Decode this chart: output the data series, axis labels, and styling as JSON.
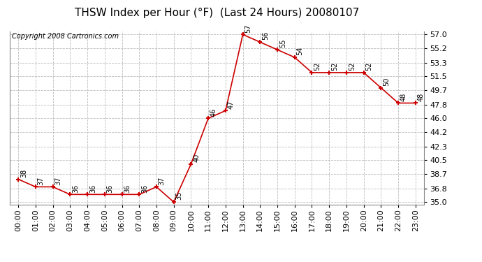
{
  "title": "THSW Index per Hour (°F)  (Last 24 Hours) 20080107",
  "copyright": "Copyright 2008 Cartronics.com",
  "hours": [
    0,
    1,
    2,
    3,
    4,
    5,
    6,
    7,
    8,
    9,
    10,
    11,
    12,
    13,
    14,
    15,
    16,
    17,
    18,
    19,
    20,
    21,
    22,
    23
  ],
  "values": [
    38,
    37,
    37,
    36,
    36,
    36,
    36,
    36,
    37,
    35,
    40,
    46,
    47,
    57,
    56,
    55,
    54,
    52,
    52,
    52,
    52,
    50,
    48,
    48
  ],
  "x_labels": [
    "00:00",
    "01:00",
    "02:00",
    "03:00",
    "04:00",
    "05:00",
    "06:00",
    "07:00",
    "08:00",
    "09:00",
    "10:00",
    "11:00",
    "12:00",
    "13:00",
    "14:00",
    "15:00",
    "16:00",
    "17:00",
    "18:00",
    "19:00",
    "20:00",
    "21:00",
    "22:00",
    "23:00"
  ],
  "y_ticks": [
    35.0,
    36.8,
    38.7,
    40.5,
    42.3,
    44.2,
    46.0,
    47.8,
    49.7,
    51.5,
    53.3,
    55.2,
    57.0
  ],
  "ylim": [
    34.7,
    57.4
  ],
  "line_color": "#cc0000",
  "marker_color": "#cc0000",
  "bg_color": "#ffffff",
  "plot_bg_color": "#ffffff",
  "grid_color": "#bbbbbb",
  "title_fontsize": 11,
  "tick_fontsize": 8,
  "annot_fontsize": 7,
  "copyright_fontsize": 7
}
